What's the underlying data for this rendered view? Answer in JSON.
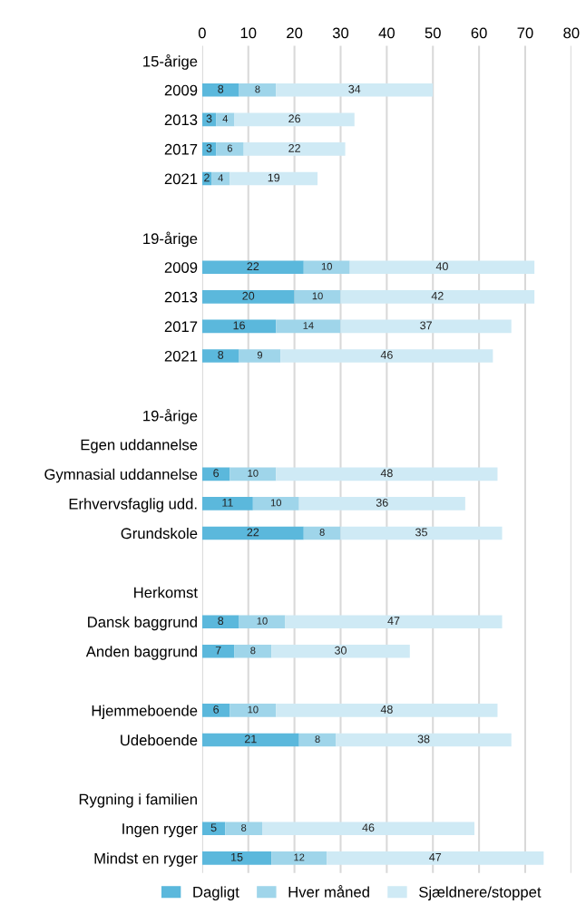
{
  "chart_data": {
    "type": "bar",
    "orientation": "horizontal",
    "stacked": true,
    "data_labels": true,
    "grid": "x",
    "legend": "bottom",
    "categories": [
      "15-årige",
      "2009",
      "2013",
      "2017",
      "2021",
      null,
      "19-årige",
      "2009",
      "2013",
      "2017",
      "2021",
      null,
      "19-årige",
      "Egen uddannelse",
      "Gymnasial uddannelse",
      "Erhvervsfaglig udd.",
      "Grundskole",
      null,
      "Herkomst",
      "Dansk baggrund",
      "Anden baggrund",
      null,
      "Hjemmeboende",
      "Udeboende",
      null,
      "Rygning i familien",
      "Ingen ryger",
      "Mindst en ryger"
    ],
    "series": [
      {
        "name": "Dagligt",
        "color": "#5bb8dc",
        "values": [
          null,
          8,
          3,
          3,
          2,
          null,
          null,
          22,
          20,
          16,
          8,
          null,
          null,
          null,
          6,
          11,
          22,
          null,
          null,
          8,
          7,
          null,
          6,
          21,
          null,
          null,
          5,
          15
        ]
      },
      {
        "name": "Hver måned",
        "color": "#9fd5ea",
        "values": [
          null,
          8,
          4,
          6,
          4,
          null,
          null,
          10,
          10,
          14,
          9,
          null,
          null,
          null,
          10,
          10,
          8,
          null,
          null,
          10,
          8,
          null,
          10,
          8,
          null,
          null,
          8,
          12
        ]
      },
      {
        "name": "Sjældnere/stoppet",
        "color": "#cfeaf5",
        "values": [
          null,
          34,
          26,
          22,
          19,
          null,
          null,
          40,
          42,
          37,
          46,
          null,
          null,
          null,
          48,
          36,
          35,
          null,
          null,
          47,
          30,
          null,
          48,
          38,
          null,
          null,
          46,
          47
        ]
      }
    ],
    "xlim": [
      0,
      80
    ],
    "xticks": [
      0,
      10,
      20,
      30,
      40,
      50,
      60,
      70,
      80
    ]
  }
}
